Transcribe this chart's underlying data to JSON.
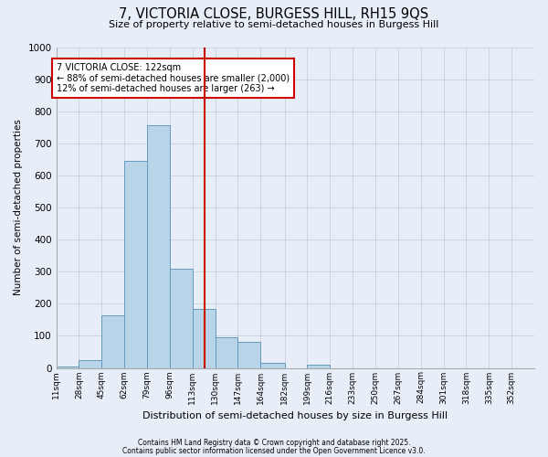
{
  "title": "7, VICTORIA CLOSE, BURGESS HILL, RH15 9QS",
  "subtitle": "Size of property relative to semi-detached houses in Burgess Hill",
  "bar_values": [
    5,
    25,
    165,
    645,
    755,
    310,
    185,
    95,
    80,
    15,
    0,
    10,
    0,
    0,
    0,
    0,
    0,
    0,
    0,
    0,
    0
  ],
  "bin_labels": [
    "11sqm",
    "28sqm",
    "45sqm",
    "62sqm",
    "79sqm",
    "96sqm",
    "113sqm",
    "130sqm",
    "147sqm",
    "164sqm",
    "182sqm",
    "199sqm",
    "216sqm",
    "233sqm",
    "250sqm",
    "267sqm",
    "284sqm",
    "301sqm",
    "318sqm",
    "335sqm",
    "352sqm"
  ],
  "bin_edges": [
    11,
    28,
    45,
    62,
    79,
    96,
    113,
    130,
    147,
    164,
    182,
    199,
    216,
    233,
    250,
    267,
    284,
    301,
    318,
    335,
    352,
    369
  ],
  "bar_color": "#b8d4e8",
  "bar_edge_color": "#6699bb",
  "property_line_x": 122,
  "property_line_color": "#cc0000",
  "annotation_line1": "7 VICTORIA CLOSE: 122sqm",
  "annotation_line2": "← 88% of semi-detached houses are smaller (2,000)",
  "annotation_line3": "12% of semi-detached houses are larger (263) →",
  "annotation_box_color": "#ffffff",
  "annotation_box_edge": "#cc0000",
  "ylabel": "Number of semi-detached properties",
  "xlabel": "Distribution of semi-detached houses by size in Burgess Hill",
  "ylim": [
    0,
    1000
  ],
  "yticks": [
    0,
    100,
    200,
    300,
    400,
    500,
    600,
    700,
    800,
    900,
    1000
  ],
  "footer_line1": "Contains HM Land Registry data © Crown copyright and database right 2025.",
  "footer_line2": "Contains public sector information licensed under the Open Government Licence v3.0.",
  "background_color": "#e8eef8",
  "grid_color": "#c8cedd"
}
